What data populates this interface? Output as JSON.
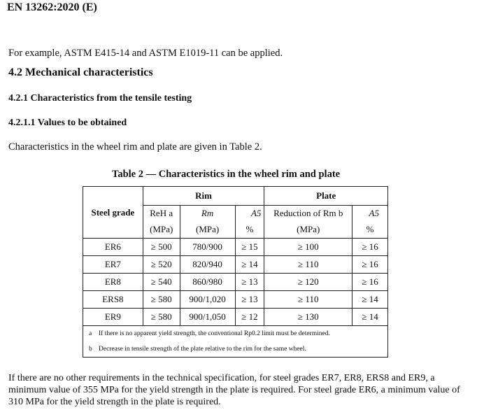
{
  "header": "EN 13262:2020 (E)",
  "intro": "For example, ASTM E415-14 and ASTM E1019-11 can be applied.",
  "h42": "4.2 Mechanical characteristics",
  "h421": "4.2.1 Characteristics from the tensile testing",
  "h4211": "4.2.1.1 Values to be obtained",
  "para1": "Characteristics in the wheel rim and plate are given in Table 2.",
  "table": {
    "caption": "Table 2 — Characteristics in the wheel rim and plate",
    "group_rim": "Rim",
    "group_plate": "Plate",
    "steel_grade": "Steel grade",
    "cols": [
      "ReH a",
      "Rm",
      "A5",
      "Reduction of Rm b",
      "A5"
    ],
    "units": [
      "(MPa)",
      "(MPa)",
      "%",
      "(MPa)",
      "%"
    ],
    "rows": [
      [
        "ER6",
        "≥ 500",
        "780/900",
        "≥ 15",
        "≥ 100",
        "≥ 16"
      ],
      [
        "ER7",
        "≥ 520",
        "820/940",
        "≥ 14",
        "≥ 110",
        "≥ 16"
      ],
      [
        "ER8",
        "≥ 540",
        "860/980",
        "≥ 13",
        "≥ 120",
        "≥ 16"
      ],
      [
        "ERS8",
        "≥ 580",
        "900/1,020",
        "≥ 13",
        "≥ 110",
        "≥ 14"
      ],
      [
        "ER9",
        "≥ 580",
        "900/1,050",
        "≥ 12",
        "≥ 130",
        "≥ 14"
      ]
    ],
    "footnotes": [
      {
        "key": "a",
        "text": "If there is no apparent yield strength, the conventional Rp0.2 limit must be determined."
      },
      {
        "key": "b",
        "text": "Decrease in tensile strength of the plate relative to the rim for the same wheel."
      }
    ]
  },
  "para2": "If there are no other requirements in the technical specification, for steel grades ER7, ER8, ERS8 and ER9, a minimum value of 355 MPa for the yield strength in the plate is required. For steel grade ER6, a minimum value of 310 MPa for the yield strength in the plate is required."
}
